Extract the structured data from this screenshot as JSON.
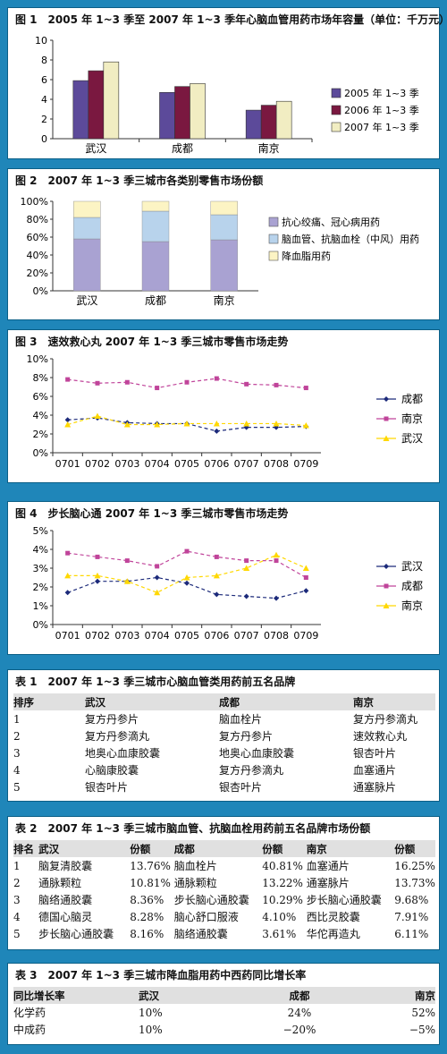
{
  "fig1": {
    "title": "图 1　2005 年 1~3 季至 2007 年 1~3 季年心脑血管用药市场年容量（单位：千万元）",
    "chart_data": {
      "type": "bar",
      "categories": [
        "武汉",
        "成都",
        "南京"
      ],
      "series": [
        {
          "name": "2005 年 1~3 季",
          "values": [
            5.9,
            4.7,
            2.9
          ],
          "color": "#5c4a9a"
        },
        {
          "name": "2006 年 1~3 季",
          "values": [
            6.9,
            5.3,
            3.4
          ],
          "color": "#7a1840"
        },
        {
          "name": "2007 年 1~3 季",
          "values": [
            7.8,
            5.6,
            3.8
          ],
          "color": "#f1edc2"
        }
      ],
      "yticks": [
        "0",
        "2",
        "4",
        "6",
        "8",
        "10"
      ],
      "ylim": [
        0,
        10
      ]
    }
  },
  "fig2": {
    "title": "图 2　2007 年 1~3 季三城市各类别零售市场份额",
    "chart_data": {
      "type": "bar",
      "stacked": true,
      "categories": [
        "武汉",
        "成都",
        "南京"
      ],
      "series": [
        {
          "name": "抗心绞痛、冠心病用药",
          "values": [
            58,
            55,
            57
          ],
          "color": "#a9a2d2"
        },
        {
          "name": "脑血管、抗脑血栓（中风）用药",
          "values": [
            24,
            34,
            28
          ],
          "color": "#b8d3ec"
        },
        {
          "name": "降血脂用药",
          "values": [
            18,
            11,
            15
          ],
          "color": "#fcf4c4"
        }
      ],
      "yticks": [
        "0%",
        "20%",
        "40%",
        "60%",
        "80%",
        "100%"
      ],
      "ylim": [
        0,
        100
      ]
    }
  },
  "fig3": {
    "title": "图 3　速效救心丸 2007 年 1~3 季三城市零售市场走势",
    "chart_data": {
      "type": "line",
      "x": [
        "0701",
        "0702",
        "0703",
        "0704",
        "0705",
        "0706",
        "0707",
        "0708",
        "0709"
      ],
      "series": [
        {
          "name": "成都",
          "values": [
            3.5,
            3.7,
            3.2,
            3.1,
            3.1,
            2.3,
            2.7,
            2.7,
            2.8
          ],
          "color": "#1c2a7a",
          "marker": "diamond"
        },
        {
          "name": "南京",
          "values": [
            7.8,
            7.4,
            7.5,
            6.9,
            7.5,
            7.9,
            7.3,
            7.2,
            6.9
          ],
          "color": "#c0449a",
          "marker": "square"
        },
        {
          "name": "武汉",
          "values": [
            3.0,
            3.9,
            3.0,
            3.0,
            3.1,
            3.1,
            3.1,
            3.1,
            2.9
          ],
          "color": "#ffd800",
          "marker": "triangle"
        }
      ],
      "yticks": [
        "0%",
        "2%",
        "4%",
        "6%",
        "8%",
        "10%"
      ],
      "ylim": [
        0,
        10
      ]
    }
  },
  "fig4": {
    "title": "图 4　步长脑心通 2007 年 1~3 季三城市零售市场走势",
    "chart_data": {
      "type": "line",
      "x": [
        "0701",
        "0702",
        "0703",
        "0704",
        "0705",
        "0706",
        "0707",
        "0708",
        "0709"
      ],
      "series": [
        {
          "name": "武汉",
          "values": [
            1.7,
            2.3,
            2.3,
            2.5,
            2.2,
            1.6,
            1.5,
            1.4,
            1.8
          ],
          "color": "#1c2a7a",
          "marker": "diamond"
        },
        {
          "name": "成都",
          "values": [
            3.8,
            3.6,
            3.4,
            3.1,
            3.9,
            3.6,
            3.4,
            3.4,
            2.5
          ],
          "color": "#c0449a",
          "marker": "square"
        },
        {
          "name": "南京",
          "values": [
            2.6,
            2.6,
            2.3,
            1.7,
            2.5,
            2.6,
            3.0,
            3.7,
            3.0
          ],
          "color": "#ffd800",
          "marker": "triangle"
        }
      ],
      "yticks": [
        "0%",
        "1%",
        "2%",
        "3%",
        "4%",
        "5%"
      ],
      "ylim": [
        0,
        5
      ]
    }
  },
  "table1": {
    "title": "表 1　2007 年 1~3 季三城市心脑血管类用药前五名品牌",
    "headers": [
      "排序",
      "武汉",
      "成都",
      "南京"
    ],
    "rows": [
      [
        "1",
        "复方丹参片",
        "脑血栓片",
        "复方丹参滴丸"
      ],
      [
        "2",
        "复方丹参滴丸",
        "复方丹参片",
        "速效救心丸"
      ],
      [
        "3",
        "地奥心血康胶囊",
        "地奥心血康胶囊",
        "银杏叶片"
      ],
      [
        "4",
        "心脑康胶囊",
        "复方丹参滴丸",
        "血塞通片"
      ],
      [
        "5",
        "银杏叶片",
        "银杏叶片",
        "通塞脉片"
      ]
    ]
  },
  "table2": {
    "title": "表 2　2007 年 1~3 季三城市脑血管、抗脑血栓用药前五名品牌市场份额",
    "headers": [
      "排名",
      "武汉",
      "份额",
      "成都",
      "份额",
      "南京",
      "份额"
    ],
    "rows": [
      [
        "1",
        "脑复清胶囊",
        "13.76%",
        "脑血栓片",
        "40.81%",
        "血塞通片",
        "16.25%"
      ],
      [
        "2",
        "通脉颗粒",
        "10.81%",
        "通脉颗粒",
        "13.22%",
        "通塞脉片",
        "13.73%"
      ],
      [
        "3",
        "脑络通胶囊",
        "8.36%",
        "步长脑心通胶囊",
        "10.29%",
        "步长脑心通胶囊",
        "9.68%"
      ],
      [
        "4",
        "德国心脑灵",
        "8.28%",
        "脑心舒口服液",
        "4.10%",
        "西比灵胶囊",
        "7.91%"
      ],
      [
        "5",
        "步长脑心通胶囊",
        "8.16%",
        "脑络通胶囊",
        "3.61%",
        "华佗再造丸",
        "6.11%"
      ]
    ]
  },
  "table3": {
    "title": "表 3　2007 年 1~3 季三城市降血脂用药中西药同比增长率",
    "headers": [
      "同比增长率",
      "武汉",
      "成都",
      "南京"
    ],
    "rows": [
      [
        "化学药",
        "10%",
        "24%",
        "52%"
      ],
      [
        "中成药",
        "10%",
        "−20%",
        "−5%"
      ]
    ]
  }
}
